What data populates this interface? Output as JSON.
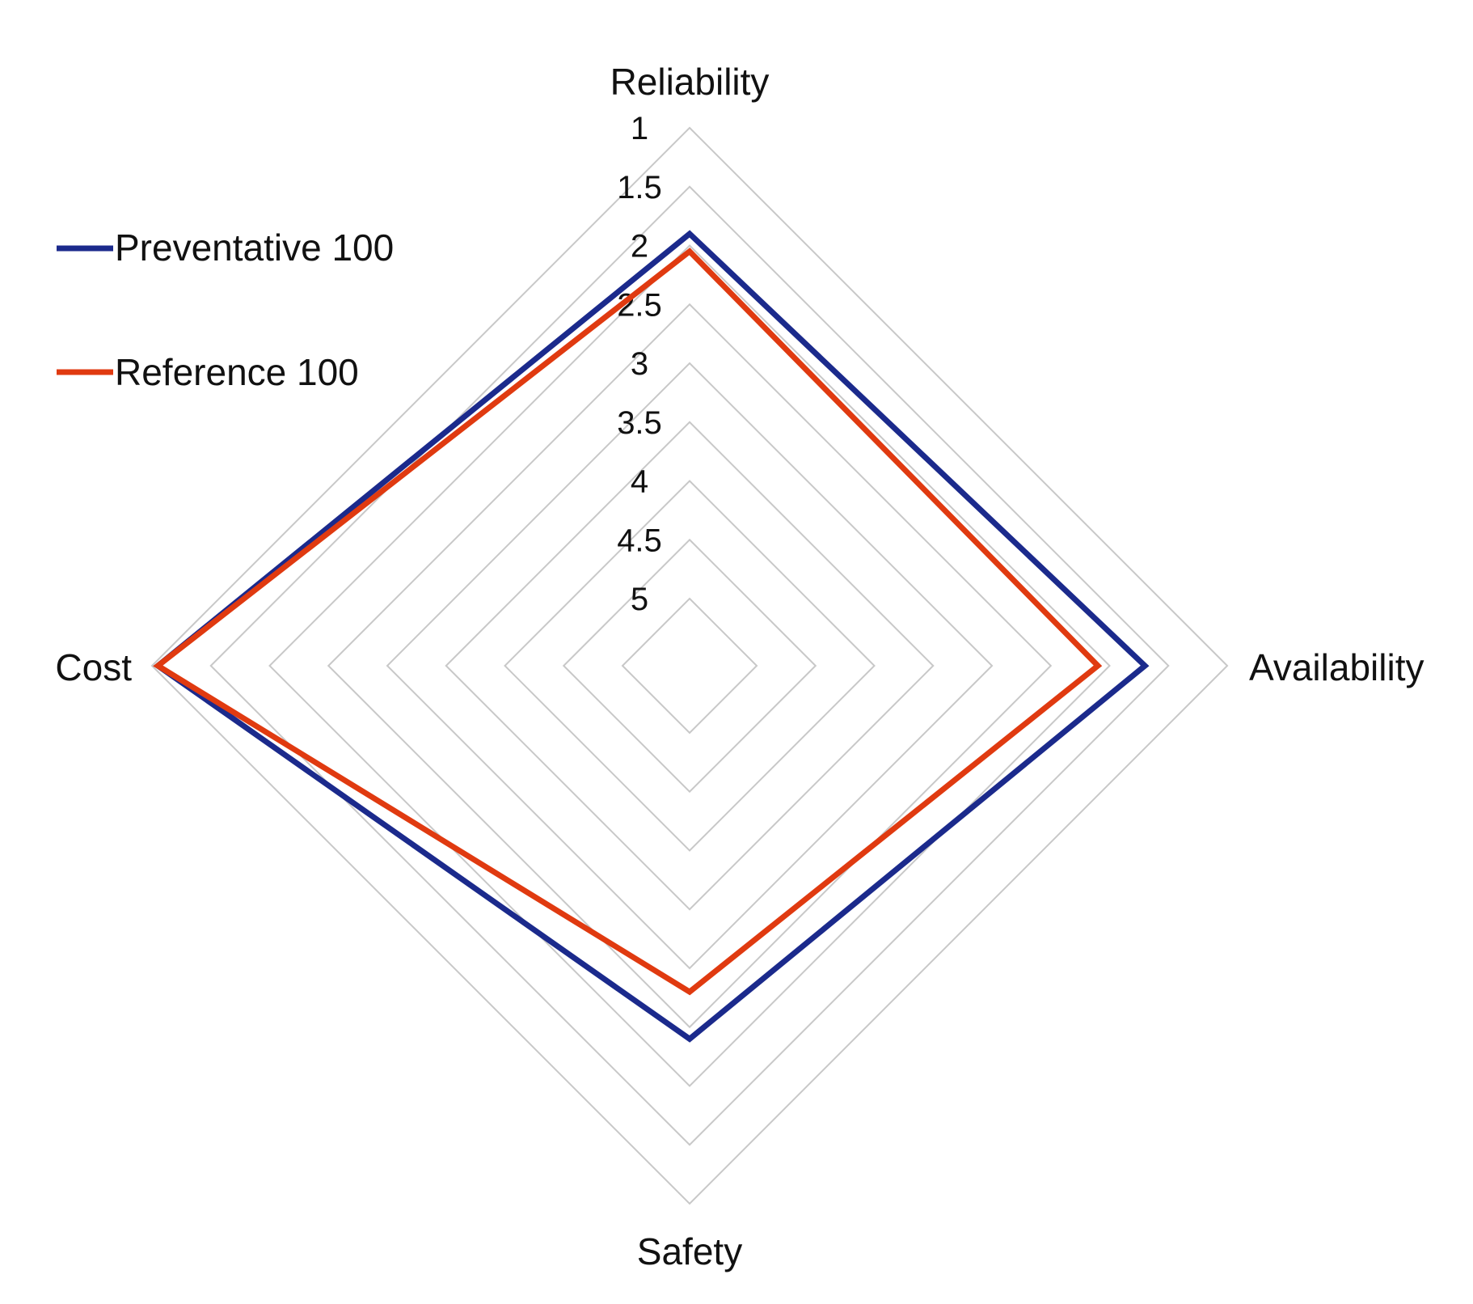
{
  "chart_data": {
    "type": "radar",
    "title": "",
    "axes": [
      "Reliability",
      "Availability",
      "Safety",
      "Cost"
    ],
    "scale": {
      "min": 1,
      "max": 5,
      "reversed": true,
      "ticks": [
        "1",
        "1.5",
        "2",
        "2.5",
        "3",
        "3.5",
        "4",
        "4.5",
        "5"
      ],
      "tick_values": [
        1,
        1.5,
        2,
        2.5,
        3,
        3.5,
        4,
        4.5,
        5
      ]
    },
    "series": [
      {
        "name": "Preventative 100",
        "color": "#1b2a8c",
        "values": [
          1.9,
          1.7,
          2.4,
          1.05
        ]
      },
      {
        "name": "Reference 100",
        "color": "#e03a10",
        "values": [
          2.05,
          2.1,
          2.8,
          1.05
        ]
      }
    ],
    "legend": {
      "position": "top-left",
      "entries": [
        "Preventative 100",
        "Reference 100"
      ]
    },
    "grid": true
  }
}
